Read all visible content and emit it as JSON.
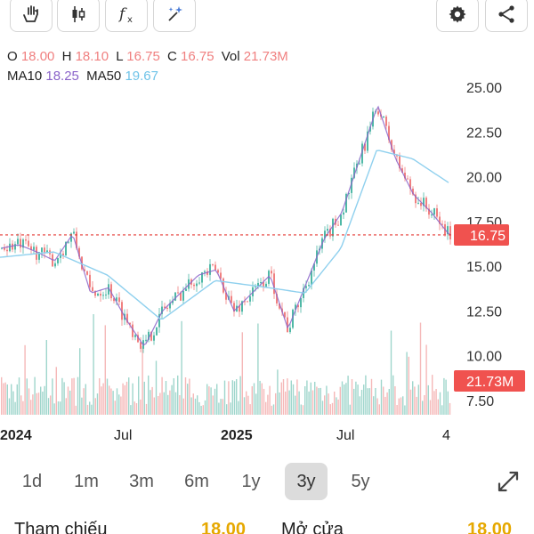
{
  "toolbar": {
    "buttons": [
      {
        "icon": "hand-icon"
      },
      {
        "icon": "candlestick-icon"
      },
      {
        "icon": "function-icon"
      },
      {
        "icon": "magic-wand-icon"
      }
    ],
    "right_buttons": [
      {
        "icon": "gear-icon"
      },
      {
        "icon": "share-icon"
      }
    ]
  },
  "ohlc": {
    "o_label": "O",
    "o": "18.00",
    "h_label": "H",
    "h": "18.10",
    "l_label": "L",
    "l": "16.75",
    "c_label": "C",
    "c": "16.75",
    "vol_label": "Vol",
    "vol": "21.73M"
  },
  "ma": {
    "ma10_label": "MA10",
    "ma10": "18.25",
    "ma50_label": "MA50",
    "ma50": "19.67"
  },
  "colors": {
    "up": "#4fb8a6",
    "down": "#f08080",
    "ma10": "#8a63c9",
    "ma50": "#8fd0ee",
    "ref_line": "#e53935",
    "badge": "#f0524f"
  },
  "chart_data": {
    "type": "candlestick",
    "y_ticks": [
      "25.00",
      "22.50",
      "20.00",
      "17.50",
      "15.00",
      "12.50",
      "10.00",
      "7.50"
    ],
    "ylim": [
      7.5,
      25
    ],
    "x_ticks": [
      "2024",
      "Jul",
      "2025",
      "Jul",
      "4"
    ],
    "price_badge": "16.75",
    "volume_badge": "21.73M",
    "close_path": [
      {
        "x": "2023-12",
        "y": 16.0
      },
      {
        "x": "2024-01",
        "y": 16.2
      },
      {
        "x": "2024-02",
        "y": 15.8
      },
      {
        "x": "2024-03",
        "y": 15.3
      },
      {
        "x": "2024-04",
        "y": 16.8
      },
      {
        "x": "2024-05",
        "y": 13.5
      },
      {
        "x": "2024-06",
        "y": 13.8
      },
      {
        "x": "2024-07",
        "y": 12.0
      },
      {
        "x": "2024-08",
        "y": 10.5
      },
      {
        "x": "2024-09",
        "y": 12.5
      },
      {
        "x": "2024-10",
        "y": 13.5
      },
      {
        "x": "2024-11",
        "y": 14.5
      },
      {
        "x": "2024-12",
        "y": 14.8
      },
      {
        "x": "2025-01",
        "y": 12.5
      },
      {
        "x": "2025-02",
        "y": 13.5
      },
      {
        "x": "2025-03",
        "y": 14.5
      },
      {
        "x": "2025-04",
        "y": 11.5
      },
      {
        "x": "2025-05",
        "y": 14.0
      },
      {
        "x": "2025-06",
        "y": 16.5
      },
      {
        "x": "2025-07",
        "y": 18.0
      },
      {
        "x": "2025-08",
        "y": 21.0
      },
      {
        "x": "2025-09",
        "y": 24.0
      },
      {
        "x": "2025-10",
        "y": 21.0
      },
      {
        "x": "2025-11",
        "y": 19.0
      },
      {
        "x": "2025-12",
        "y": 18.0
      },
      {
        "x": "2026-01",
        "y": 16.75
      }
    ],
    "ma50_path": [
      {
        "x": "2023-12",
        "y": 15.5
      },
      {
        "x": "2024-03",
        "y": 15.8
      },
      {
        "x": "2024-06",
        "y": 14.5
      },
      {
        "x": "2024-09",
        "y": 12.0
      },
      {
        "x": "2024-12",
        "y": 14.2
      },
      {
        "x": "2025-03",
        "y": 13.8
      },
      {
        "x": "2025-05",
        "y": 13.5
      },
      {
        "x": "2025-07",
        "y": 16.0
      },
      {
        "x": "2025-09",
        "y": 21.5
      },
      {
        "x": "2025-11",
        "y": 21.0
      },
      {
        "x": "2026-01",
        "y": 19.67
      }
    ]
  },
  "ranges": {
    "items": [
      "1d",
      "1m",
      "3m",
      "6m",
      "1y",
      "3y",
      "5y"
    ],
    "active": "3y"
  },
  "stats": {
    "ref_label": "Tham chiếu",
    "ref_value": "18.00",
    "open_label": "Mở cửa",
    "open_value": "18.00"
  }
}
